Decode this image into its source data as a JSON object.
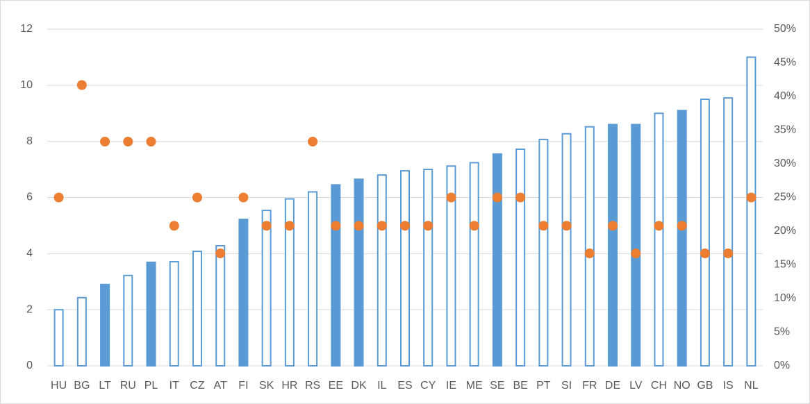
{
  "chart_data": {
    "type": "bar",
    "categories": [
      "HU",
      "BG",
      "LT",
      "RU",
      "PL",
      "IT",
      "CZ",
      "AT",
      "FI",
      "SK",
      "HR",
      "RS",
      "EE",
      "DK",
      "IL",
      "ES",
      "CY",
      "IE",
      "ME",
      "SE",
      "BE",
      "PT",
      "SI",
      "FR",
      "DE",
      "LV",
      "CH",
      "NO",
      "GB",
      "IS",
      "NL"
    ],
    "series": [
      {
        "type": "bar",
        "color": "#5b9bd5",
        "fill_colors": [
          "#ffffff",
          "#ffffff",
          "#5b9bd5",
          "#ffffff",
          "#5b9bd5",
          "#ffffff",
          "#ffffff",
          "#ffffff",
          "#5b9bd5",
          "#ffffff",
          "#ffffff",
          "#ffffff",
          "#5b9bd5",
          "#5b9bd5",
          "#ffffff",
          "#ffffff",
          "#ffffff",
          "#ffffff",
          "#ffffff",
          "#5b9bd5",
          "#ffffff",
          "#ffffff",
          "#ffffff",
          "#ffffff",
          "#5b9bd5",
          "#5b9bd5",
          "#ffffff",
          "#5b9bd5",
          "#ffffff",
          "#ffffff",
          "#ffffff"
        ],
        "values": [
          2.0,
          2.43,
          2.9,
          3.22,
          3.69,
          3.71,
          4.08,
          4.28,
          5.22,
          5.54,
          5.95,
          6.2,
          6.45,
          6.65,
          6.8,
          6.95,
          7.0,
          7.12,
          7.24,
          7.55,
          7.72,
          8.07,
          8.27,
          8.52,
          8.6,
          8.6,
          9.0,
          9.1,
          9.5,
          9.55,
          11.0
        ]
      },
      {
        "type": "scatter",
        "axis": "y2",
        "color": "#ed7d31",
        "values": [
          25,
          41.7,
          33.3,
          33.3,
          33.3,
          20.8,
          25,
          16.7,
          25,
          20.8,
          20.8,
          33.3,
          20.8,
          20.8,
          20.8,
          20.8,
          20.8,
          25,
          20.8,
          25,
          25,
          20.8,
          20.8,
          16.7,
          20.8,
          16.7,
          20.8,
          20.8,
          16.7,
          16.7,
          25
        ]
      }
    ],
    "ylim": [
      0,
      12
    ],
    "yticks": [
      0,
      2,
      4,
      6,
      8,
      10,
      12
    ],
    "y2lim": [
      0,
      50
    ],
    "y2ticks": [
      {
        "value": 0,
        "label": "0%"
      },
      {
        "value": 5,
        "label": "5%"
      },
      {
        "value": 10,
        "label": "10%"
      },
      {
        "value": 15,
        "label": "15%"
      },
      {
        "value": 20,
        "label": "20%"
      },
      {
        "value": 25,
        "label": "25%"
      },
      {
        "value": 30,
        "label": "30%"
      },
      {
        "value": 35,
        "label": "35%"
      },
      {
        "value": 40,
        "label": "40%"
      },
      {
        "value": 45,
        "label": "45%"
      },
      {
        "value": 50,
        "label": "50%"
      }
    ],
    "grid": true
  }
}
